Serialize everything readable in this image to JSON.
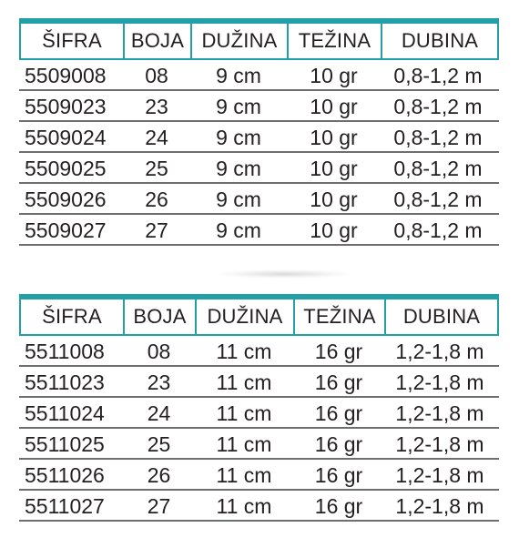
{
  "tables": [
    {
      "headers": [
        "ŠIFRA",
        "BOJA",
        "DUŽINA",
        "TEŽINA",
        "DUBINA"
      ],
      "rows": [
        [
          "5509008",
          "08",
          "9 cm",
          "10 gr",
          "0,8-1,2 m"
        ],
        [
          "5509023",
          "23",
          "9 cm",
          "10 gr",
          "0,8-1,2 m"
        ],
        [
          "5509024",
          "24",
          "9 cm",
          "10 gr",
          "0,8-1,2 m"
        ],
        [
          "5509025",
          "25",
          "9 cm",
          "10 gr",
          "0,8-1,2 m"
        ],
        [
          "5509026",
          "26",
          "9 cm",
          "10 gr",
          "0,8-1,2 m"
        ],
        [
          "5509027",
          "27",
          "9 cm",
          "10 gr",
          "0,8-1,2 m"
        ]
      ]
    },
    {
      "headers": [
        "ŠIFRA",
        "BOJA",
        "DUŽINA",
        "TEŽINA",
        "DUBINA"
      ],
      "rows": [
        [
          "5511008",
          "08",
          "11 cm",
          "16 gr",
          "1,2-1,8 m"
        ],
        [
          "5511023",
          "23",
          "11 cm",
          "16 gr",
          "1,2-1,8 m"
        ],
        [
          "5511024",
          "24",
          "11 cm",
          "16 gr",
          "1,2-1,8 m"
        ],
        [
          "5511025",
          "25",
          "11 cm",
          "16 gr",
          "1,2-1,8 m"
        ],
        [
          "5511026",
          "26",
          "11 cm",
          "16 gr",
          "1,2-1,8 m"
        ],
        [
          "5511027",
          "27",
          "11 cm",
          "16 gr",
          "1,2-1,8 m"
        ]
      ]
    }
  ],
  "colors": {
    "header_border": "#22a0a8",
    "row_rule": "#6e6e6e",
    "text": "#231f20"
  }
}
